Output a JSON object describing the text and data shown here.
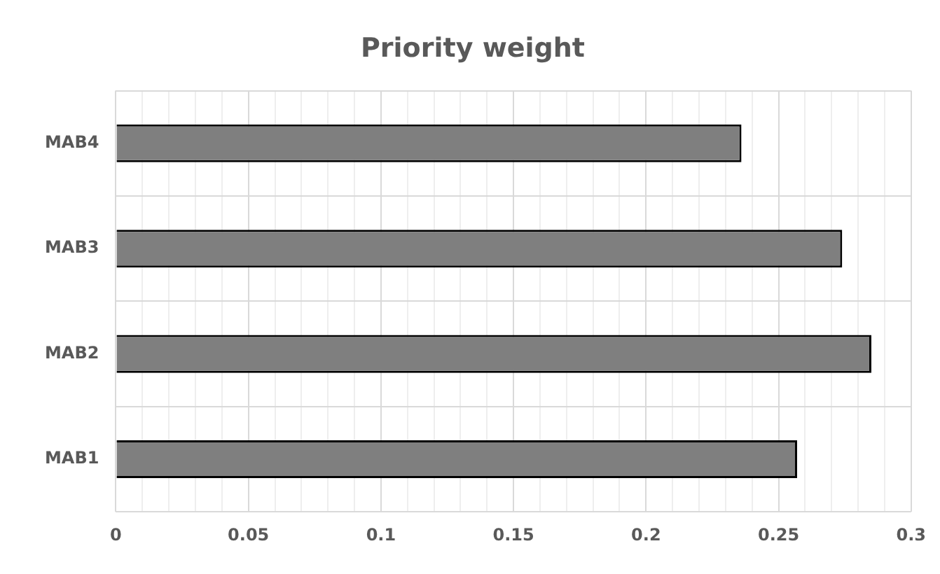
{
  "chart_data": {
    "type": "bar",
    "orientation": "horizontal",
    "title": "Priority weight",
    "categories": [
      "MAB4",
      "MAB3",
      "MAB2",
      "MAB1"
    ],
    "values": [
      0.236,
      0.274,
      0.285,
      0.257
    ],
    "color": "#7f7f7f",
    "xlim": [
      0,
      0.3
    ],
    "xticks": [
      0,
      {
        "value": 0.01,
        "label": null
      },
      {
        "value": 0.02,
        "label": null
      },
      {
        "value": 0.03,
        "label": null
      },
      {
        "value": 0.04,
        "label": null
      },
      0.05,
      {
        "value": 0.06,
        "label": null
      },
      {
        "value": 0.07,
        "label": null
      },
      {
        "value": 0.08,
        "label": null
      },
      {
        "value": 0.09,
        "label": null
      },
      0.1,
      {
        "value": 0.11,
        "label": null
      },
      {
        "value": 0.12,
        "label": null
      },
      {
        "value": 0.13,
        "label": null
      },
      {
        "value": 0.14,
        "label": null
      },
      0.15,
      {
        "value": 0.16,
        "label": null
      },
      {
        "value": 0.17,
        "label": null
      },
      {
        "value": 0.18,
        "label": null
      },
      {
        "value": 0.19,
        "label": null
      },
      0.2,
      {
        "value": 0.21,
        "label": null
      },
      {
        "value": 0.22,
        "label": null
      },
      {
        "value": 0.23,
        "label": null
      },
      {
        "value": 0.24,
        "label": null
      },
      0.25,
      {
        "value": 0.26,
        "label": null
      },
      {
        "value": 0.27,
        "label": null
      },
      {
        "value": 0.28,
        "label": null
      },
      {
        "value": 0.29,
        "label": null
      },
      0.3
    ],
    "grid": true
  }
}
